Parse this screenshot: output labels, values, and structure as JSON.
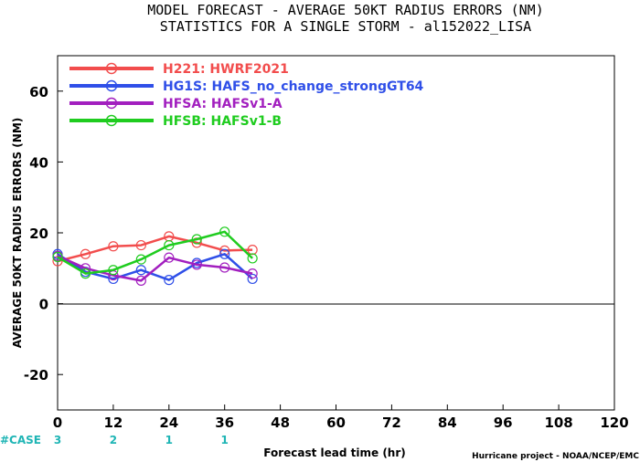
{
  "title_line1": "MODEL FORECAST - AVERAGE 50KT RADIUS ERRORS (NM)",
  "title_line2": "STATISTICS FOR A SINGLE STORM - al152022_LISA",
  "case_label": "#CASE",
  "credit": "Hurricane project - NOAA/NCEP/EMC",
  "chart_data": {
    "type": "line",
    "xlabel": "Forecast lead time (hr)",
    "ylabel": "AVERAGE 50KT RADIUS ERRORS (NM)",
    "xlim": [
      0,
      120
    ],
    "ylim": [
      -30,
      70
    ],
    "x_ticks": [
      "0",
      "12",
      "24",
      "36",
      "48",
      "60",
      "72",
      "84",
      "96",
      "108",
      "120"
    ],
    "y_ticks": [
      "-20",
      "0",
      "20",
      "40",
      "60"
    ],
    "zero_line": true,
    "grid": false,
    "legend_position": "top-left",
    "cases": [
      {
        "x": 0,
        "label": "3"
      },
      {
        "x": 12,
        "label": "2"
      },
      {
        "x": 24,
        "label": "1"
      },
      {
        "x": 36,
        "label": "1"
      }
    ],
    "series": [
      {
        "name": "H221: HWRF2021",
        "color": "#f24d4d",
        "x": [
          0,
          6,
          12,
          18,
          24,
          30,
          36,
          42
        ],
        "y": [
          12,
          14,
          16.2,
          16.5,
          19,
          17.2,
          15,
          15.2
        ]
      },
      {
        "name": "HG1S: HAFS_no_change_strongGT64",
        "color": "#2f4fe8",
        "x": [
          0,
          6,
          12,
          18,
          24,
          30,
          36,
          42
        ],
        "y": [
          14,
          9,
          7,
          9.5,
          6.7,
          11.5,
          14,
          7
        ]
      },
      {
        "name": "HFSA: HAFSv1-A",
        "color": "#a21fbf",
        "x": [
          0,
          6,
          12,
          18,
          24,
          30,
          36,
          42
        ],
        "y": [
          13.5,
          10,
          8,
          6.5,
          13,
          11,
          10.2,
          8.5
        ]
      },
      {
        "name": "HFSB: HAFSv1-B",
        "color": "#1fcc1f",
        "x": [
          0,
          6,
          12,
          18,
          24,
          30,
          36,
          42
        ],
        "y": [
          13.2,
          8.5,
          9.5,
          12.5,
          16.5,
          18.2,
          20.3,
          12.8
        ]
      }
    ]
  }
}
